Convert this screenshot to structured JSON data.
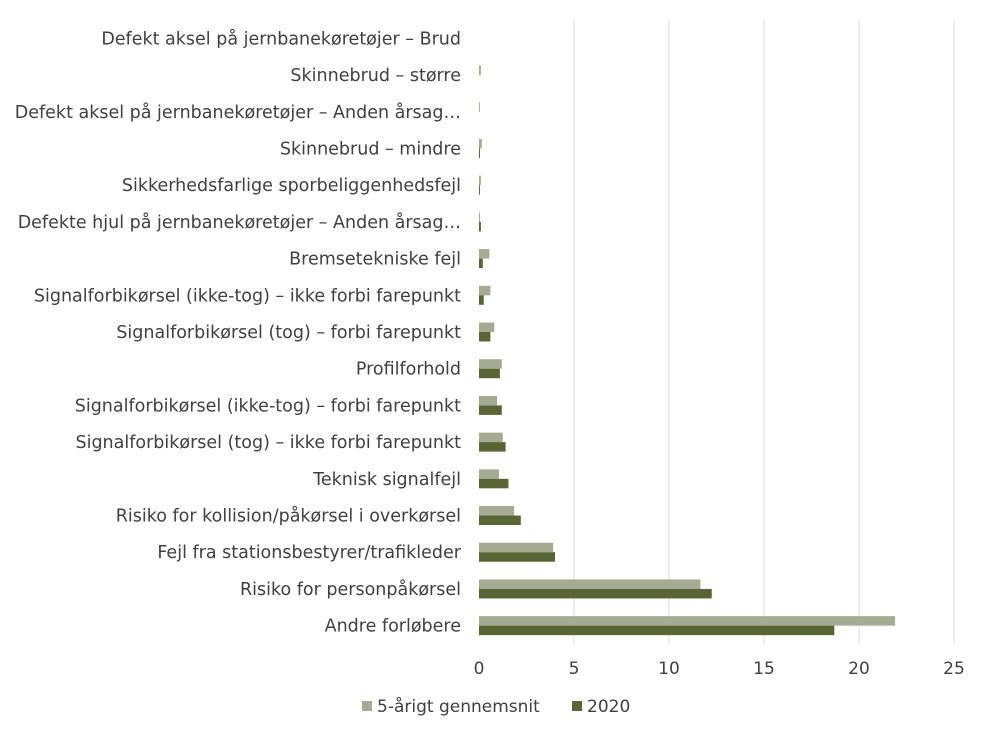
{
  "chart_data": {
    "type": "bar",
    "orientation": "horizontal",
    "categories": [
      "Defekt aksel på jernbanekøretøjer – Brud",
      "Skinnebrud – større",
      "Defekt aksel på jernbanekøretøjer – Anden årsag…",
      "Skinnebrud – mindre",
      "Sikkerhedsfarlige sporbeliggenhedsfejl",
      "Defekte hjul på jernbanekøretøjer – Anden årsag…",
      "Bremsetekniske fejl",
      "Signalforbikørsel (ikke-tog) – ikke forbi farepunkt",
      "Signalforbikørsel (tog) – forbi farepunkt",
      "Profilforhold",
      "Signalforbikørsel (ikke-tog) – forbi farepunkt",
      "Signalforbikørsel (tog) – ikke forbi farepunkt",
      "Teknisk signalfejl",
      "Risiko for kollision/påkørsel i overkørsel",
      "Fejl fra stationsbestyrer/trafikleder",
      "Risiko for personpåkørsel",
      "Andre forløbere"
    ],
    "series": [
      {
        "name": "5-årigt gennemsnit",
        "color": "#a5ab92",
        "values": [
          0.0,
          0.1,
          0.05,
          0.15,
          0.1,
          0.05,
          0.55,
          0.6,
          0.8,
          1.2,
          0.95,
          1.25,
          1.05,
          1.85,
          3.9,
          11.65,
          21.9
        ]
      },
      {
        "name": "2020",
        "color": "#5a6536",
        "values": [
          0.0,
          0.0,
          0.0,
          0.05,
          0.05,
          0.1,
          0.2,
          0.25,
          0.6,
          1.1,
          1.2,
          1.4,
          1.55,
          2.2,
          4.0,
          12.25,
          18.7
        ]
      }
    ],
    "xlim": [
      0,
      25
    ],
    "xticks": [
      "0",
      "5",
      "10",
      "15",
      "20",
      "25"
    ],
    "grid": true,
    "legend_position": "bottom"
  }
}
